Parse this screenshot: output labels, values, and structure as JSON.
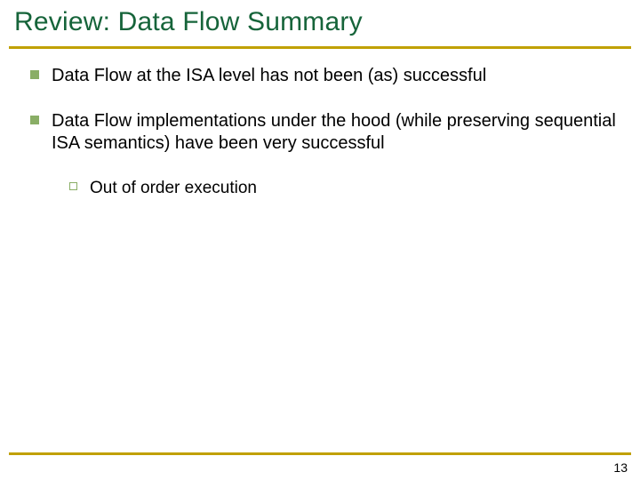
{
  "title": "Review: Data Flow Summary",
  "title_color": "#16643a",
  "title_fontsize": 30,
  "hr_color": "#c0a000",
  "bullet_color": "#8aae66",
  "body_fontsize_lvl1": 20,
  "body_fontsize_lvl2": 19,
  "text_color": "#000000",
  "background_color": "#ffffff",
  "items": [
    {
      "text": "Data Flow at the ISA level has not been (as) successful"
    },
    {
      "text": "Data Flow implementations under the hood (while preserving sequential ISA semantics) have been very successful",
      "children": [
        {
          "text": "Out of order execution"
        }
      ]
    }
  ],
  "page_number": "13"
}
